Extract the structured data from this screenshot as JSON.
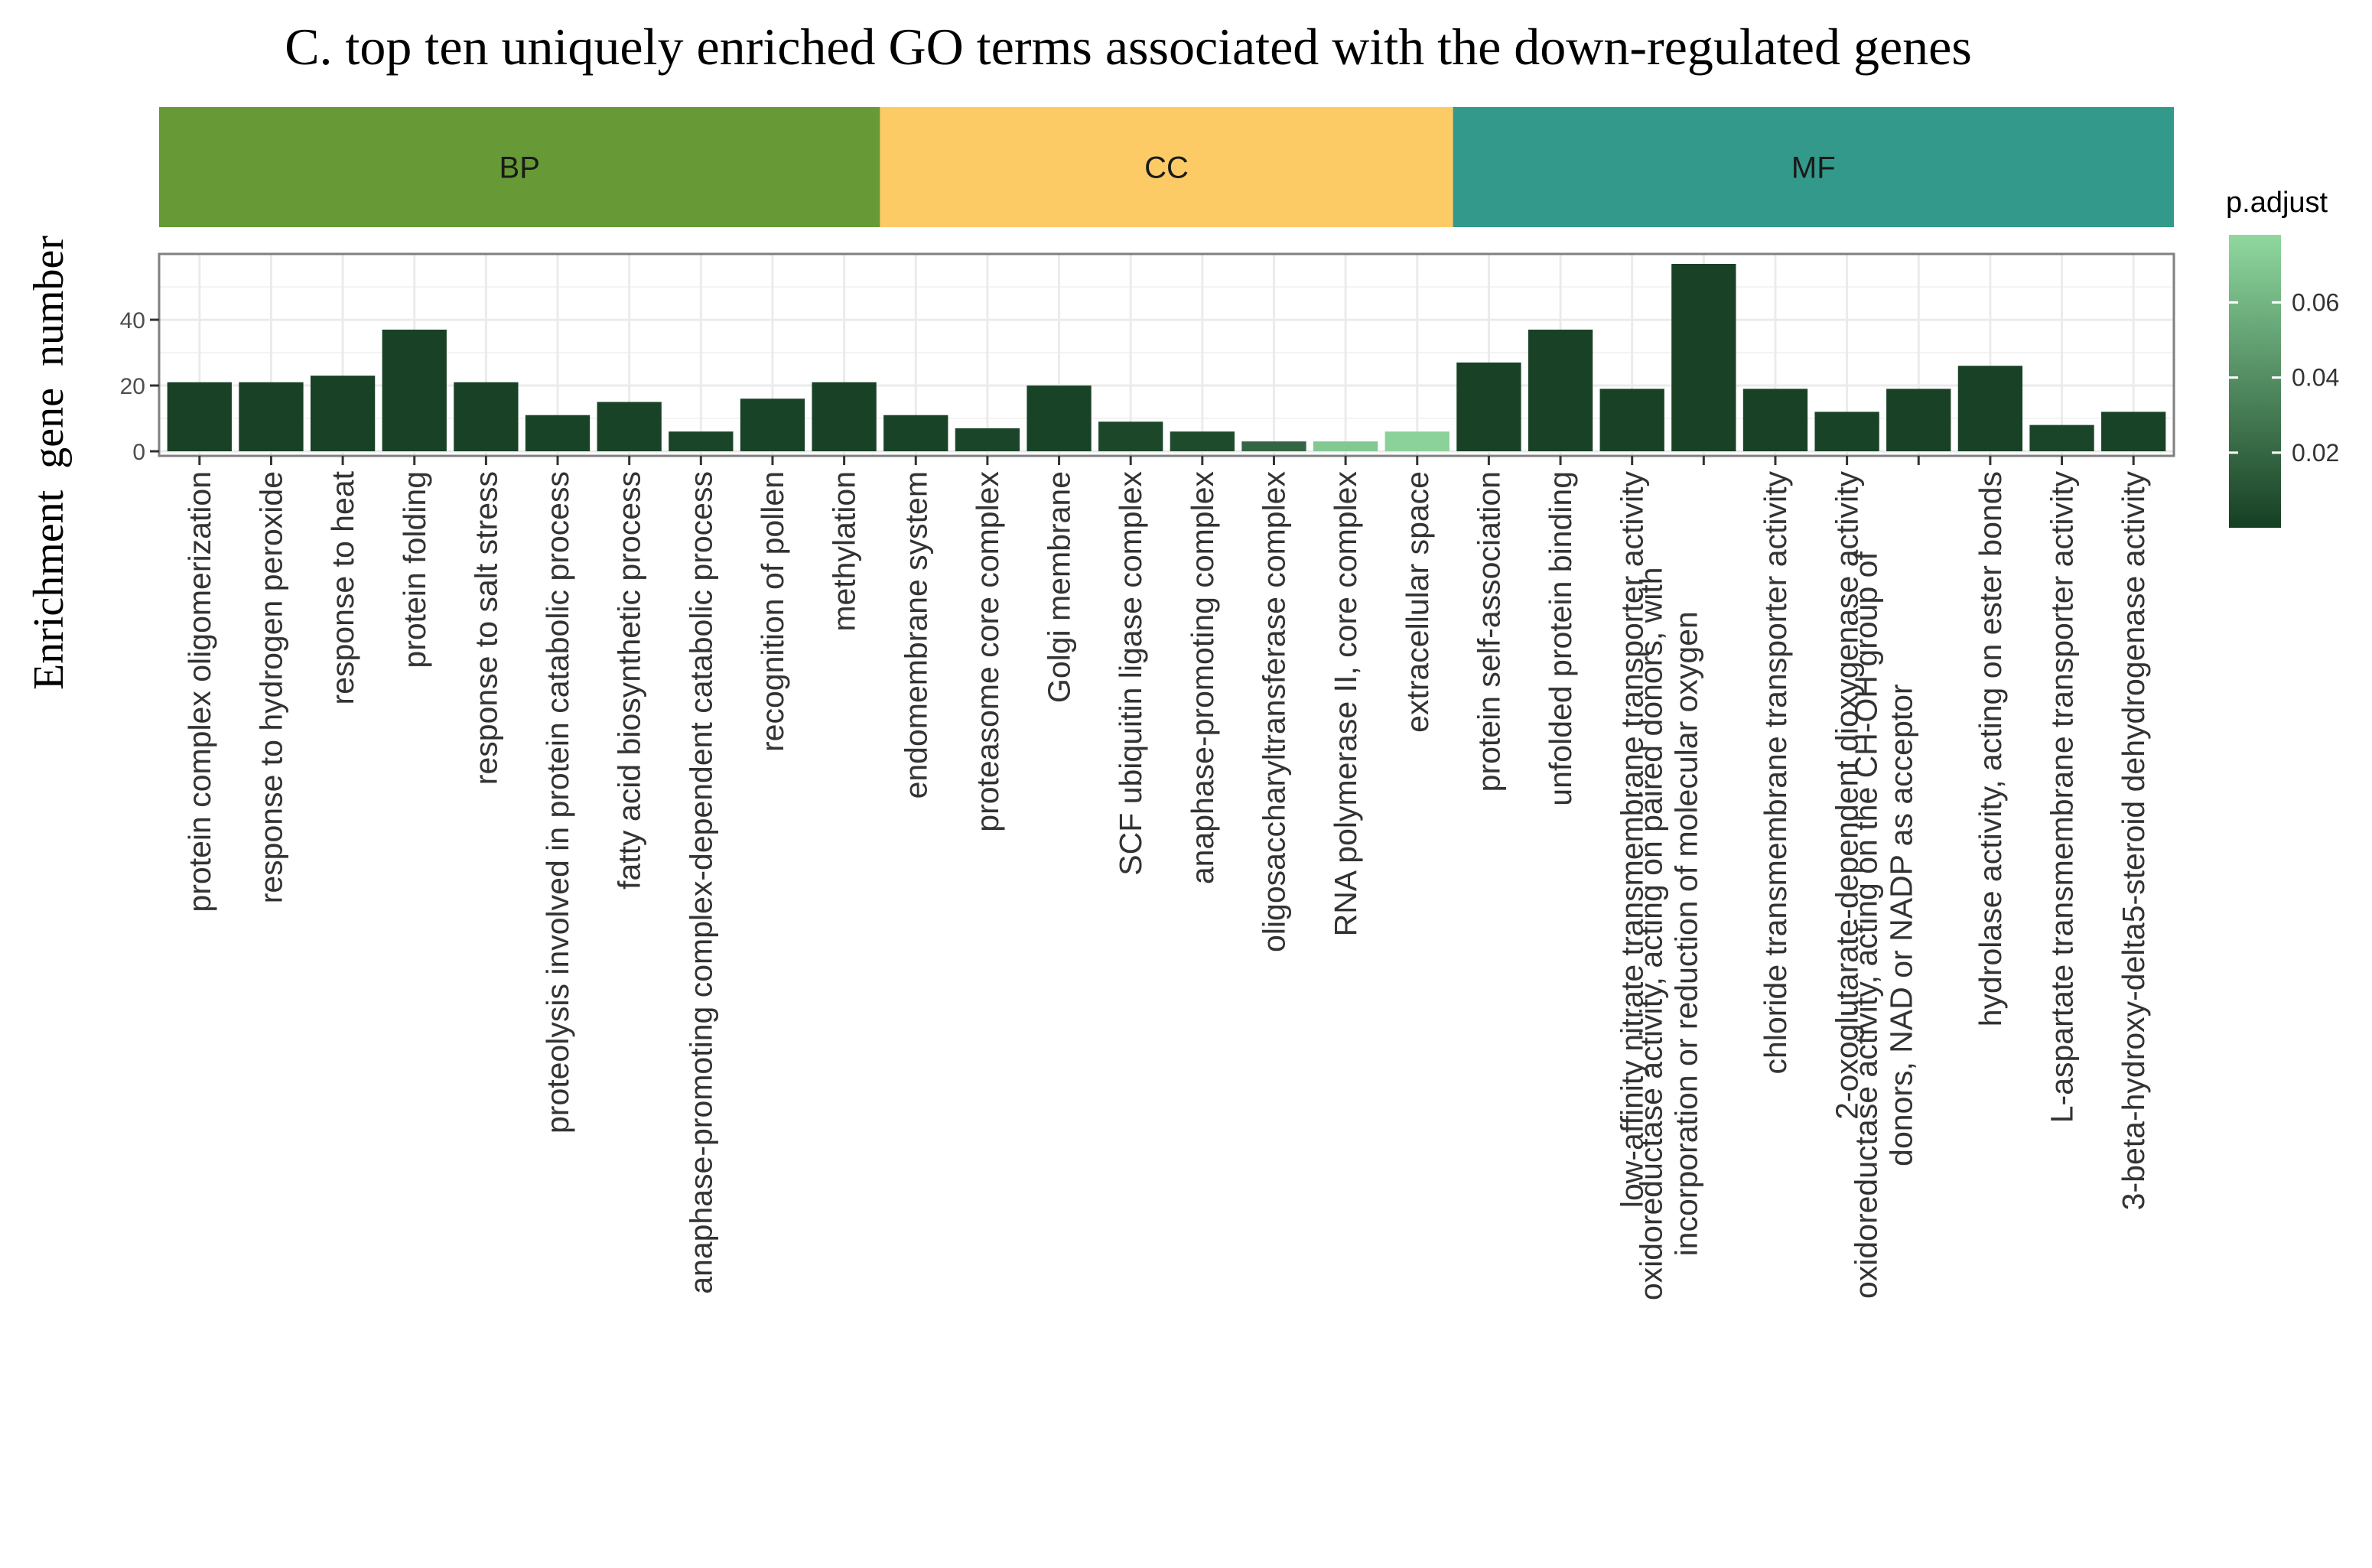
{
  "chart_data": {
    "type": "bar",
    "title": "C. top ten uniquely enriched GO terms associated with the down-regulated genes",
    "ylabel": "Enrichment  gene  number",
    "xlabel": "",
    "ylim": [
      0,
      58
    ],
    "yticks": [
      0,
      20,
      40
    ],
    "facets": [
      {
        "name": "BP",
        "color": "#679a36"
      },
      {
        "name": "CC",
        "color": "#fdcb66"
      },
      {
        "name": "MF",
        "color": "#33998a"
      }
    ],
    "categories": [
      {
        "label": [
          "protein complex oligomerization"
        ],
        "value": 21,
        "facet": "BP",
        "p_adjust": 0.001
      },
      {
        "label": [
          "response to hydrogen peroxide"
        ],
        "value": 21,
        "facet": "BP",
        "p_adjust": 0.001
      },
      {
        "label": [
          "response to heat"
        ],
        "value": 23,
        "facet": "BP",
        "p_adjust": 0.001
      },
      {
        "label": [
          "protein folding"
        ],
        "value": 37,
        "facet": "BP",
        "p_adjust": 0.001
      },
      {
        "label": [
          "response to salt stress"
        ],
        "value": 21,
        "facet": "BP",
        "p_adjust": 0.001
      },
      {
        "label": [
          "proteolysis involved in protein catabolic process"
        ],
        "value": 11,
        "facet": "BP",
        "p_adjust": 0.002
      },
      {
        "label": [
          "fatty acid biosynthetic process"
        ],
        "value": 15,
        "facet": "BP",
        "p_adjust": 0.002
      },
      {
        "label": [
          "anaphase-promoting complex-dependent catabolic process"
        ],
        "value": 6,
        "facet": "BP",
        "p_adjust": 0.003
      },
      {
        "label": [
          "recognition of pollen"
        ],
        "value": 16,
        "facet": "BP",
        "p_adjust": 0.002
      },
      {
        "label": [
          "methylation"
        ],
        "value": 21,
        "facet": "BP",
        "p_adjust": 0.001
      },
      {
        "label": [
          "endomembrane system"
        ],
        "value": 11,
        "facet": "CC",
        "p_adjust": 0.002
      },
      {
        "label": [
          "proteasome core complex"
        ],
        "value": 7,
        "facet": "CC",
        "p_adjust": 0.003
      },
      {
        "label": [
          "Golgi membrane"
        ],
        "value": 20,
        "facet": "CC",
        "p_adjust": 0.002
      },
      {
        "label": [
          "SCF ubiquitin ligase complex"
        ],
        "value": 9,
        "facet": "CC",
        "p_adjust": 0.004
      },
      {
        "label": [
          "anaphase-promoting complex"
        ],
        "value": 6,
        "facet": "CC",
        "p_adjust": 0.006
      },
      {
        "label": [
          "oligosaccharyltransferase complex"
        ],
        "value": 3,
        "facet": "CC",
        "p_adjust": 0.02
      },
      {
        "label": [
          "RNA polymerase II, core complex"
        ],
        "value": 3,
        "facet": "CC",
        "p_adjust": 0.07
      },
      {
        "label": [
          "extracellular space"
        ],
        "value": 6,
        "facet": "CC",
        "p_adjust": 0.075
      },
      {
        "label": [
          "protein self-association"
        ],
        "value": 27,
        "facet": "MF",
        "p_adjust": 0.001
      },
      {
        "label": [
          "unfolded protein binding"
        ],
        "value": 37,
        "facet": "MF",
        "p_adjust": 0.001
      },
      {
        "label": [
          "low-affinity nitrate transmembrane transporter activity"
        ],
        "value": 19,
        "facet": "MF",
        "p_adjust": 0.001
      },
      {
        "label": [
          "oxidoreductase activity, acting on paired donors, with",
          "incorporation or reduction of molecular oxygen"
        ],
        "value": 57,
        "facet": "MF",
        "p_adjust": 0.001
      },
      {
        "label": [
          "chloride transmembrane transporter activity"
        ],
        "value": 19,
        "facet": "MF",
        "p_adjust": 0.001
      },
      {
        "label": [
          "2-oxoglutarate-dependent dioxygenase activity"
        ],
        "value": 12,
        "facet": "MF",
        "p_adjust": 0.002
      },
      {
        "label": [
          "oxidoreductase activity, acting on the CH-OH group of",
          "donors, NAD or NADP as acceptor"
        ],
        "value": 19,
        "facet": "MF",
        "p_adjust": 0.001
      },
      {
        "label": [
          "hydrolase activity, acting on ester bonds"
        ],
        "value": 26,
        "facet": "MF",
        "p_adjust": 0.001
      },
      {
        "label": [
          "L-aspartate transmembrane transporter activity"
        ],
        "value": 8,
        "facet": "MF",
        "p_adjust": 0.003
      },
      {
        "label": [
          "3-beta-hydroxy-delta5-steroid dehydrogenase activity"
        ],
        "value": 12,
        "facet": "MF",
        "p_adjust": 0.002
      }
    ],
    "legend": {
      "title": "p.adjust",
      "range": [
        0,
        0.078
      ],
      "ticks": [
        0.02,
        0.04,
        0.06
      ],
      "tick_labels": [
        "0.02",
        "0.04",
        "0.06"
      ],
      "color_low": "#163f23",
      "color_high": "#8fd89f",
      "placement": "right"
    },
    "panel_border_color": "#808080",
    "grid_color": "#ebebeb"
  }
}
